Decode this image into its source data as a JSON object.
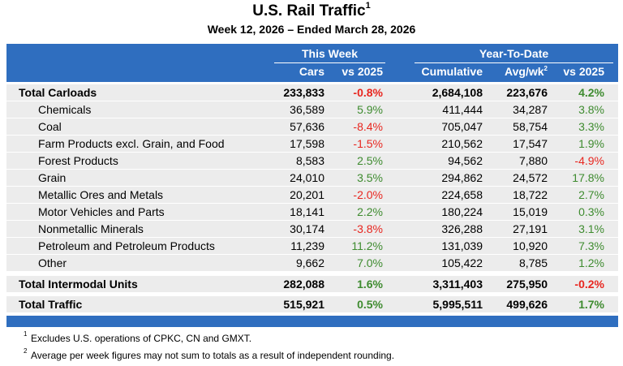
{
  "title": "U.S. Rail Traffic",
  "title_note": "1",
  "subtitle": "Week 12, 2026 – Ended March 28, 2026",
  "header": {
    "this_week": "This Week",
    "ytd": "Year-To-Date",
    "cars": "Cars",
    "vs_week": "vs 2025",
    "cumulative": "Cumulative",
    "avg": "Avg/wk",
    "avg_note": "2",
    "vs_ytd": "vs 2025"
  },
  "rows": [
    {
      "label": "Total Carloads",
      "cars": "233,833",
      "vs": "-0.8%",
      "cum": "2,684,108",
      "avg": "223,676",
      "vs_ytd": "4.2%",
      "type": "total"
    },
    {
      "label": "Chemicals",
      "cars": "36,589",
      "vs": "5.9%",
      "cum": "411,444",
      "avg": "34,287",
      "vs_ytd": "3.8%",
      "type": "sub"
    },
    {
      "label": "Coal",
      "cars": "57,636",
      "vs": "-8.4%",
      "cum": "705,047",
      "avg": "58,754",
      "vs_ytd": "3.3%",
      "type": "sub"
    },
    {
      "label": "Farm Products excl. Grain, and Food",
      "cars": "17,598",
      "vs": "-1.5%",
      "cum": "210,562",
      "avg": "17,547",
      "vs_ytd": "1.9%",
      "type": "sub"
    },
    {
      "label": "Forest Products",
      "cars": "8,583",
      "vs": "2.5%",
      "cum": "94,562",
      "avg": "7,880",
      "vs_ytd": "-4.9%",
      "type": "sub"
    },
    {
      "label": "Grain",
      "cars": "24,010",
      "vs": "3.5%",
      "cum": "294,862",
      "avg": "24,572",
      "vs_ytd": "17.8%",
      "type": "sub"
    },
    {
      "label": "Metallic Ores and Metals",
      "cars": "20,201",
      "vs": "-2.0%",
      "cum": "224,658",
      "avg": "18,722",
      "vs_ytd": "2.7%",
      "type": "sub"
    },
    {
      "label": "Motor Vehicles and Parts",
      "cars": "18,141",
      "vs": "2.2%",
      "cum": "180,224",
      "avg": "15,019",
      "vs_ytd": "0.3%",
      "type": "sub"
    },
    {
      "label": "Nonmetallic Minerals",
      "cars": "30,174",
      "vs": "-3.8%",
      "cum": "326,288",
      "avg": "27,191",
      "vs_ytd": "3.1%",
      "type": "sub"
    },
    {
      "label": "Petroleum and Petroleum Products",
      "cars": "11,239",
      "vs": "11.2%",
      "cum": "131,039",
      "avg": "10,920",
      "vs_ytd": "7.3%",
      "type": "sub"
    },
    {
      "label": "Other",
      "cars": "9,662",
      "vs": "7.0%",
      "cum": "105,422",
      "avg": "8,785",
      "vs_ytd": "1.2%",
      "type": "sub"
    },
    {
      "label": "Total Intermodal Units",
      "cars": "282,088",
      "vs": "1.6%",
      "cum": "3,311,403",
      "avg": "275,950",
      "vs_ytd": "-0.2%",
      "type": "total"
    },
    {
      "label": "Total Traffic",
      "cars": "515,921",
      "vs": "0.5%",
      "cum": "5,995,511",
      "avg": "499,626",
      "vs_ytd": "1.7%",
      "type": "total"
    }
  ],
  "colors": {
    "header": "#2f6ebf",
    "negative": "#e8261f",
    "positive": "#3e8b2f",
    "row": "#ececec"
  },
  "footnotes": [
    {
      "mark": "1",
      "text": "Excludes U.S. operations of CPKC, CN and GMXT."
    },
    {
      "mark": "2",
      "text": "Average per week figures may not sum to totals as a result of independent rounding."
    }
  ]
}
